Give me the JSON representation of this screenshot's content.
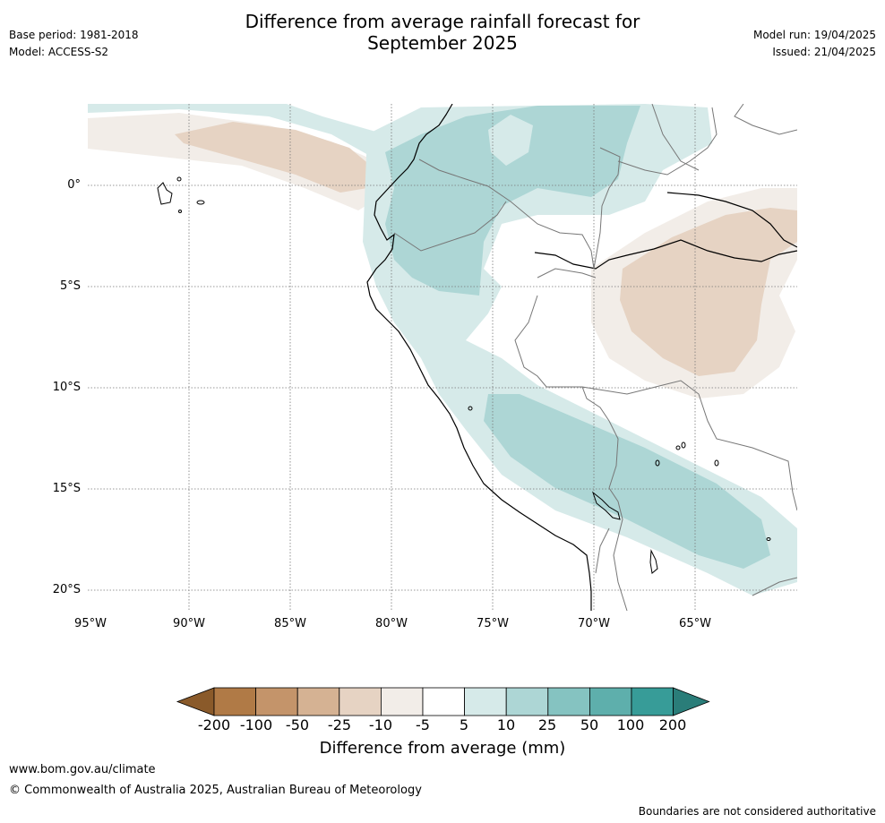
{
  "header": {
    "title_line1": "Difference from average rainfall forecast for",
    "title_line2": "September 2025",
    "base_period": "Base period: 1981-2018",
    "model": "Model: ACCESS-S2",
    "model_run": "Model run: 19/04/2025",
    "issued": "Issued: 21/04/2025"
  },
  "map": {
    "lat_labels": [
      "0°",
      "5°S",
      "10°S",
      "15°S",
      "20°S"
    ],
    "lon_labels": [
      "95°W",
      "90°W",
      "85°W",
      "80°W",
      "75°W",
      "70°W",
      "65°W"
    ]
  },
  "colorbar": {
    "labels": [
      "-200",
      "-100",
      "-50",
      "-25",
      "-10",
      "-5",
      "5",
      "10",
      "25",
      "50",
      "100",
      "200"
    ],
    "colors": [
      "#8a5a2a",
      "#b07a46",
      "#c4946a",
      "#d5b293",
      "#e6d3c3",
      "#f2ede8",
      "#ffffff",
      "#d6eae9",
      "#add6d5",
      "#85c3c1",
      "#5eafac",
      "#379c98",
      "#2a7d79"
    ],
    "title": "Difference from average (mm)"
  },
  "footer": {
    "website": "www.bom.gov.au/climate",
    "copyright": "© Commonwealth of Australia 2025, Australian Bureau of Meteorology",
    "disclaimer": "Boundaries are not considered authoritative"
  }
}
